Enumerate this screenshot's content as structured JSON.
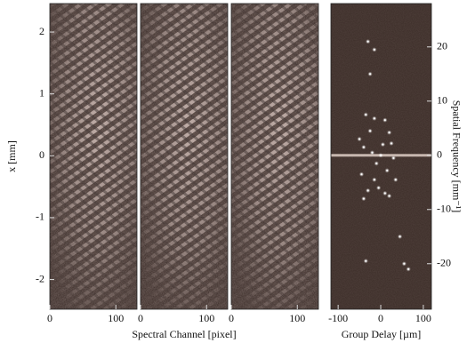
{
  "chart_data": [
    {
      "type": "image",
      "xlim": [
        0,
        132
      ],
      "xticks": [
        0,
        100
      ],
      "ylim": [
        -2.48,
        2.46
      ],
      "yticks": [
        -2,
        -1,
        0,
        1,
        2
      ],
      "xlabel": "Spectral Channel [pixel]",
      "ylabel": "x [mm]"
    },
    {
      "type": "image",
      "xlim": [
        0,
        132
      ],
      "xticks": [
        0,
        100
      ],
      "ylim": [
        -2.48,
        2.46
      ]
    },
    {
      "type": "image",
      "xlim": [
        0,
        132
      ],
      "xticks": [
        0,
        100
      ],
      "ylim": [
        -2.48,
        2.46
      ]
    },
    {
      "type": "scatter",
      "xlim": [
        -117,
        119
      ],
      "xticks": [
        -100,
        0,
        100
      ],
      "ylim": [
        -28.4,
        28
      ],
      "yticks": [
        -20,
        -10,
        0,
        10,
        20
      ],
      "y_axis_position": "right",
      "xlabel": "Group Delay [µm]",
      "ylabel": "Spatial Frequency [mm⁻¹]",
      "color": "#ffffff",
      "x": [
        0,
        -35,
        -15,
        10,
        -25,
        20,
        -50,
        -40,
        5,
        25,
        -20,
        30,
        -10,
        15,
        -45,
        -15,
        35,
        -5,
        10,
        -30,
        20,
        -40,
        -30,
        -15,
        -25,
        45,
        55,
        -35,
        65
      ],
      "y": [
        0,
        7.5,
        6.8,
        6.5,
        4.5,
        4.2,
        3,
        1.5,
        2,
        2.2,
        0.5,
        -0.5,
        -1.5,
        -2.8,
        -3.5,
        -4.5,
        -4.5,
        -6,
        -7,
        -6.5,
        -7.5,
        -8,
        21,
        19.5,
        15,
        -15,
        -20,
        -19.5,
        -21
      ]
    }
  ]
}
